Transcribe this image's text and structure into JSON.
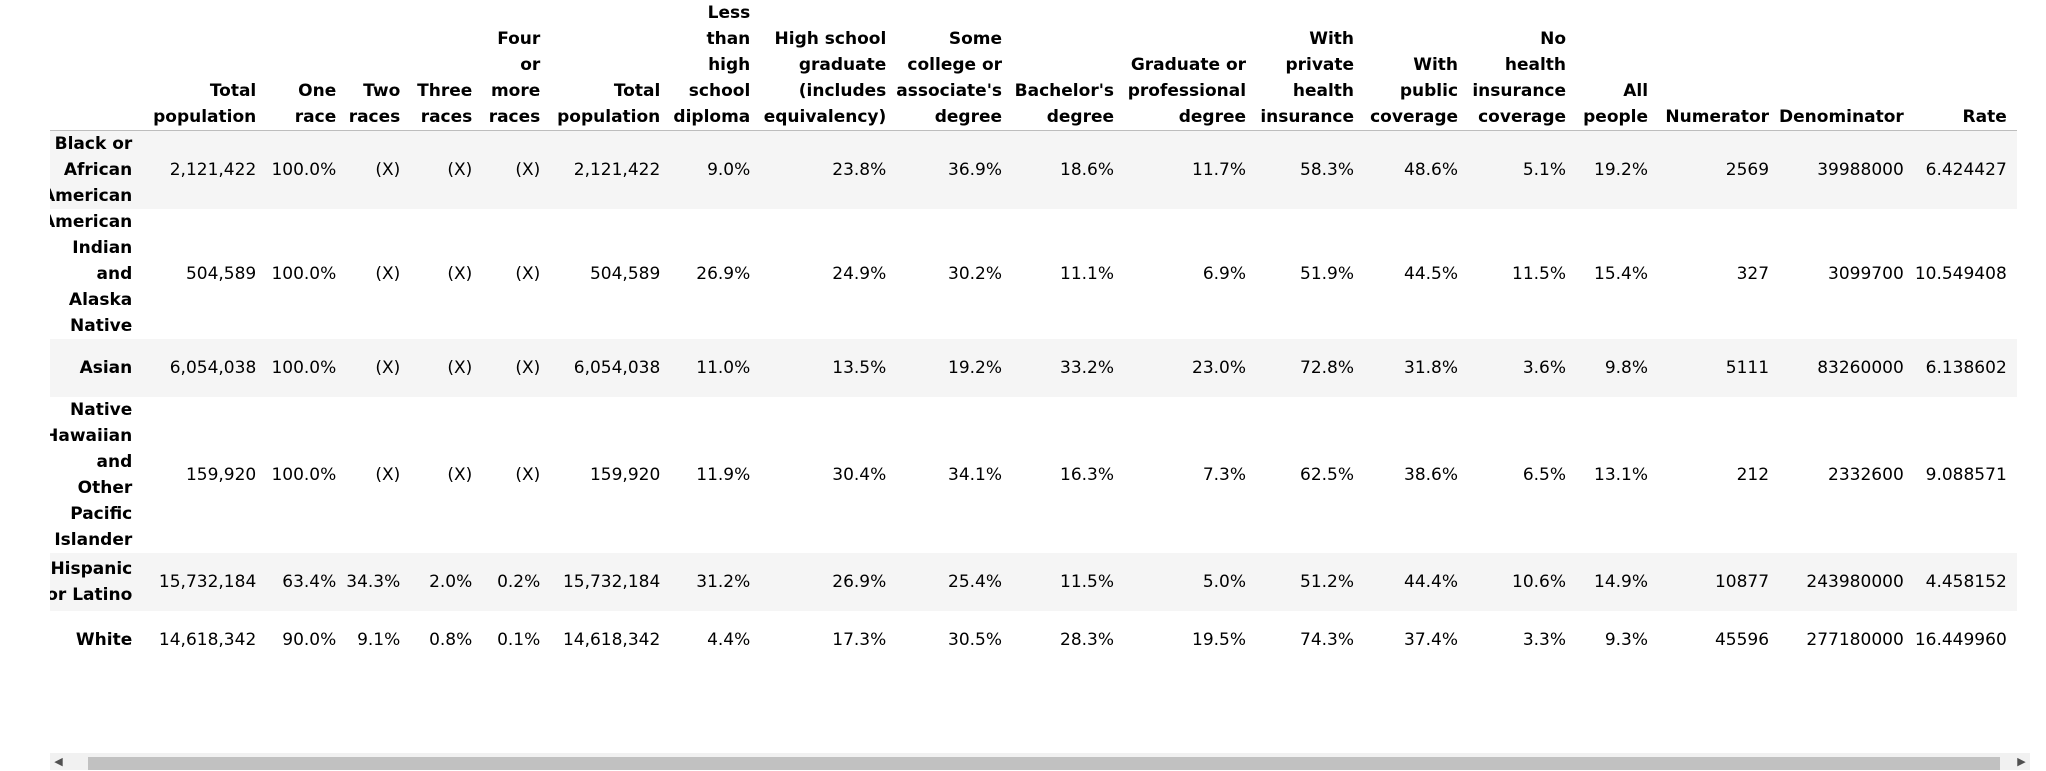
{
  "table": {
    "headers": [
      [
        ""
      ],
      [
        "Total",
        "population"
      ],
      [
        "One",
        "race"
      ],
      [
        "Two",
        "races"
      ],
      [
        "Three",
        "races"
      ],
      [
        "Four",
        "or",
        "more",
        "races"
      ],
      [
        "Total",
        "population"
      ],
      [
        "Less",
        "than",
        "high",
        "school",
        "diploma"
      ],
      [
        "High school",
        "graduate",
        "(includes",
        "equivalency)"
      ],
      [
        "Some",
        "college or",
        "associate's",
        "degree"
      ],
      [
        "Bachelor's",
        "degree"
      ],
      [
        "Graduate or",
        "professional",
        "degree"
      ],
      [
        "With",
        "private",
        "health",
        "insurance"
      ],
      [
        "With",
        "public",
        "coverage"
      ],
      [
        "No",
        "health",
        "insurance",
        "coverage"
      ],
      [
        "All",
        "people"
      ],
      [
        "Numerator"
      ],
      [
        "Denominator"
      ],
      [
        "Rate"
      ]
    ],
    "rows": [
      {
        "label_lines": [
          "Black or",
          "African",
          "American"
        ],
        "cells": [
          "2,121,422",
          "100.0%",
          "(X)",
          "(X)",
          "(X)",
          "2,121,422",
          "9.0%",
          "23.8%",
          "36.9%",
          "18.6%",
          "11.7%",
          "58.3%",
          "48.6%",
          "5.1%",
          "19.2%",
          "2569",
          "39988000",
          "6.424427"
        ]
      },
      {
        "label_lines": [
          "American",
          "Indian",
          "and",
          "Alaska",
          "Native"
        ],
        "cells": [
          "504,589",
          "100.0%",
          "(X)",
          "(X)",
          "(X)",
          "504,589",
          "26.9%",
          "24.9%",
          "30.2%",
          "11.1%",
          "6.9%",
          "51.9%",
          "44.5%",
          "11.5%",
          "15.4%",
          "327",
          "3099700",
          "10.549408"
        ]
      },
      {
        "label_lines": [
          "Asian"
        ],
        "cells": [
          "6,054,038",
          "100.0%",
          "(X)",
          "(X)",
          "(X)",
          "6,054,038",
          "11.0%",
          "13.5%",
          "19.2%",
          "33.2%",
          "23.0%",
          "72.8%",
          "31.8%",
          "3.6%",
          "9.8%",
          "5111",
          "83260000",
          "6.138602"
        ]
      },
      {
        "label_lines": [
          "Native",
          "Hawaiian",
          "and",
          "Other",
          "Pacific",
          "Islander"
        ],
        "cells": [
          "159,920",
          "100.0%",
          "(X)",
          "(X)",
          "(X)",
          "159,920",
          "11.9%",
          "30.4%",
          "34.1%",
          "16.3%",
          "7.3%",
          "62.5%",
          "38.6%",
          "6.5%",
          "13.1%",
          "212",
          "2332600",
          "9.088571"
        ]
      },
      {
        "label_lines": [
          "Hispanic",
          "or Latino"
        ],
        "cells": [
          "15,732,184",
          "63.4%",
          "34.3%",
          "2.0%",
          "0.2%",
          "15,732,184",
          "31.2%",
          "26.9%",
          "25.4%",
          "11.5%",
          "5.0%",
          "51.2%",
          "44.4%",
          "10.6%",
          "14.9%",
          "10877",
          "243980000",
          "4.458152"
        ]
      },
      {
        "label_lines": [
          "White"
        ],
        "cells": [
          "14,618,342",
          "90.0%",
          "9.1%",
          "0.8%",
          "0.1%",
          "14,618,342",
          "4.4%",
          "17.3%",
          "30.5%",
          "28.3%",
          "19.5%",
          "74.3%",
          "37.4%",
          "3.3%",
          "9.3%",
          "45596",
          "277180000",
          "16.449960"
        ]
      }
    ]
  },
  "scrollbar": {
    "left_arrow": "◀",
    "right_arrow": "▶"
  }
}
